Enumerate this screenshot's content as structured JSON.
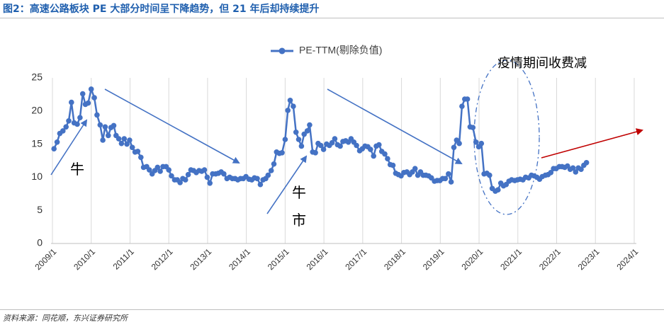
{
  "header": {
    "title": "图2：高速公路板块 PE 大部分时间呈下降趋势，但 21 年后却持续提升"
  },
  "source": "资料来源：同花顺，东兴证券研究所",
  "colors": {
    "title": "#1f5fae",
    "series": "#4472c4",
    "trend_arrow_blue": "#4472c4",
    "trend_arrow_red": "#c00000",
    "ellipse": "#4472c4",
    "grid": "#d9d9d9"
  },
  "chart_data": {
    "type": "line",
    "legend": {
      "position": "top-center",
      "entries": [
        "PE-TTM(剔除负值)"
      ]
    },
    "ylim": [
      0,
      25
    ],
    "yticks": [
      0,
      5,
      10,
      15,
      20,
      25
    ],
    "xlim": [
      2009.0,
      2024.1
    ],
    "xticks": [
      "2009/1",
      "2010/1",
      "2011/1",
      "2012/1",
      "2013/1",
      "2014/1",
      "2015/1",
      "2016/1",
      "2017/1",
      "2018/1",
      "2019/1",
      "2020/1",
      "2021/1",
      "2022/1",
      "2023/1",
      "2024/1"
    ],
    "grid": "vertical lines at x ticks",
    "series": [
      {
        "name": "PE-TTM(剔除负值)",
        "marker": "circle",
        "points": [
          [
            2009.04,
            14.3
          ],
          [
            2009.12,
            15.3
          ],
          [
            2009.19,
            16.6
          ],
          [
            2009.27,
            17.0
          ],
          [
            2009.35,
            17.6
          ],
          [
            2009.42,
            18.5
          ],
          [
            2009.49,
            21.3
          ],
          [
            2009.56,
            18.2
          ],
          [
            2009.64,
            18.0
          ],
          [
            2009.71,
            19.0
          ],
          [
            2009.78,
            22.6
          ],
          [
            2009.85,
            21.0
          ],
          [
            2009.92,
            21.2
          ],
          [
            2010.0,
            23.3
          ],
          [
            2010.08,
            22.0
          ],
          [
            2010.15,
            19.4
          ],
          [
            2010.23,
            17.9
          ],
          [
            2010.3,
            15.6
          ],
          [
            2010.36,
            17.6
          ],
          [
            2010.44,
            16.3
          ],
          [
            2010.51,
            17.5
          ],
          [
            2010.58,
            17.8
          ],
          [
            2010.64,
            16.3
          ],
          [
            2010.71,
            15.8
          ],
          [
            2010.78,
            15.1
          ],
          [
            2010.85,
            15.8
          ],
          [
            2010.92,
            15.0
          ],
          [
            2010.99,
            15.6
          ],
          [
            2011.06,
            14.5
          ],
          [
            2011.13,
            13.8
          ],
          [
            2011.2,
            13.9
          ],
          [
            2011.28,
            13.0
          ],
          [
            2011.35,
            11.5
          ],
          [
            2011.43,
            11.6
          ],
          [
            2011.5,
            11.1
          ],
          [
            2011.57,
            10.5
          ],
          [
            2011.64,
            11.0
          ],
          [
            2011.71,
            11.5
          ],
          [
            2011.78,
            10.9
          ],
          [
            2011.85,
            11.6
          ],
          [
            2011.93,
            11.6
          ],
          [
            2012.0,
            11.1
          ],
          [
            2012.07,
            10.2
          ],
          [
            2012.15,
            9.6
          ],
          [
            2012.22,
            9.6
          ],
          [
            2012.29,
            9.2
          ],
          [
            2012.36,
            9.8
          ],
          [
            2012.43,
            9.6
          ],
          [
            2012.5,
            10.4
          ],
          [
            2012.57,
            11.1
          ],
          [
            2012.64,
            11.0
          ],
          [
            2012.71,
            10.7
          ],
          [
            2012.78,
            11.0
          ],
          [
            2012.85,
            10.9
          ],
          [
            2012.92,
            11.1
          ],
          [
            2012.99,
            10.0
          ],
          [
            2013.06,
            9.1
          ],
          [
            2013.13,
            10.5
          ],
          [
            2013.21,
            10.5
          ],
          [
            2013.28,
            10.6
          ],
          [
            2013.35,
            10.8
          ],
          [
            2013.42,
            10.5
          ],
          [
            2013.5,
            9.8
          ],
          [
            2013.57,
            10.0
          ],
          [
            2013.64,
            9.8
          ],
          [
            2013.71,
            9.8
          ],
          [
            2013.78,
            9.6
          ],
          [
            2013.85,
            9.8
          ],
          [
            2013.92,
            9.8
          ],
          [
            2013.99,
            10.1
          ],
          [
            2014.07,
            9.7
          ],
          [
            2014.14,
            9.6
          ],
          [
            2014.21,
            9.9
          ],
          [
            2014.28,
            9.8
          ],
          [
            2014.36,
            8.9
          ],
          [
            2014.43,
            9.6
          ],
          [
            2014.5,
            9.8
          ],
          [
            2014.56,
            10.3
          ],
          [
            2014.64,
            11.0
          ],
          [
            2014.71,
            12.0
          ],
          [
            2014.78,
            13.8
          ],
          [
            2014.85,
            13.6
          ],
          [
            2014.92,
            13.7
          ],
          [
            2015.0,
            15.7
          ],
          [
            2015.07,
            20.1
          ],
          [
            2015.13,
            21.6
          ],
          [
            2015.21,
            20.7
          ],
          [
            2015.28,
            16.8
          ],
          [
            2015.35,
            15.7
          ],
          [
            2015.42,
            14.7
          ],
          [
            2015.49,
            16.5
          ],
          [
            2015.57,
            17.0
          ],
          [
            2015.63,
            17.9
          ],
          [
            2015.71,
            13.8
          ],
          [
            2015.78,
            13.7
          ],
          [
            2015.85,
            15.1
          ],
          [
            2015.92,
            14.8
          ],
          [
            2015.99,
            14.2
          ],
          [
            2016.07,
            15.0
          ],
          [
            2016.14,
            14.8
          ],
          [
            2016.21,
            15.2
          ],
          [
            2016.28,
            15.8
          ],
          [
            2016.35,
            14.9
          ],
          [
            2016.42,
            14.7
          ],
          [
            2016.49,
            15.4
          ],
          [
            2016.56,
            15.5
          ],
          [
            2016.63,
            15.3
          ],
          [
            2016.7,
            15.8
          ],
          [
            2016.77,
            15.3
          ],
          [
            2016.84,
            14.8
          ],
          [
            2016.92,
            14.0
          ],
          [
            2016.99,
            14.3
          ],
          [
            2017.06,
            14.7
          ],
          [
            2017.13,
            14.6
          ],
          [
            2017.2,
            14.2
          ],
          [
            2017.28,
            13.2
          ],
          [
            2017.35,
            14.7
          ],
          [
            2017.42,
            14.9
          ],
          [
            2017.49,
            13.9
          ],
          [
            2017.57,
            13.5
          ],
          [
            2017.64,
            12.8
          ],
          [
            2017.71,
            11.9
          ],
          [
            2017.78,
            11.8
          ],
          [
            2017.85,
            10.6
          ],
          [
            2017.92,
            10.4
          ],
          [
            2017.99,
            10.2
          ],
          [
            2018.06,
            10.7
          ],
          [
            2018.14,
            10.8
          ],
          [
            2018.21,
            10.4
          ],
          [
            2018.28,
            10.8
          ],
          [
            2018.35,
            11.3
          ],
          [
            2018.42,
            10.3
          ],
          [
            2018.49,
            10.8
          ],
          [
            2018.56,
            10.3
          ],
          [
            2018.63,
            10.3
          ],
          [
            2018.7,
            10.2
          ],
          [
            2018.77,
            9.9
          ],
          [
            2018.85,
            9.4
          ],
          [
            2018.92,
            9.5
          ],
          [
            2018.99,
            9.5
          ],
          [
            2019.06,
            9.8
          ],
          [
            2019.13,
            9.8
          ],
          [
            2019.21,
            10.5
          ],
          [
            2019.28,
            9.3
          ],
          [
            2019.35,
            14.5
          ],
          [
            2019.42,
            15.6
          ],
          [
            2019.49,
            15.1
          ],
          [
            2019.56,
            20.7
          ],
          [
            2019.63,
            21.8
          ],
          [
            2019.7,
            21.8
          ],
          [
            2019.77,
            17.6
          ],
          [
            2019.84,
            17.5
          ],
          [
            2019.92,
            15.3
          ],
          [
            2019.99,
            14.6
          ],
          [
            2020.06,
            15.1
          ],
          [
            2020.13,
            10.5
          ],
          [
            2020.2,
            10.6
          ],
          [
            2020.27,
            10.3
          ],
          [
            2020.34,
            8.3
          ],
          [
            2020.42,
            7.9
          ],
          [
            2020.49,
            8.1
          ],
          [
            2020.56,
            9.1
          ],
          [
            2020.63,
            8.7
          ],
          [
            2020.7,
            8.9
          ],
          [
            2020.77,
            9.4
          ],
          [
            2020.84,
            9.6
          ],
          [
            2020.92,
            9.5
          ],
          [
            2020.99,
            9.6
          ],
          [
            2021.06,
            9.7
          ],
          [
            2021.13,
            9.6
          ],
          [
            2021.2,
            10.0
          ],
          [
            2021.28,
            9.9
          ],
          [
            2021.35,
            10.3
          ],
          [
            2021.42,
            10.2
          ],
          [
            2021.49,
            10.0
          ],
          [
            2021.56,
            9.7
          ],
          [
            2021.63,
            10.1
          ],
          [
            2021.71,
            10.3
          ],
          [
            2021.78,
            10.4
          ],
          [
            2021.85,
            10.7
          ],
          [
            2021.92,
            11.3
          ],
          [
            2021.99,
            11.3
          ],
          [
            2022.07,
            11.6
          ],
          [
            2022.14,
            11.6
          ],
          [
            2022.21,
            11.5
          ],
          [
            2022.28,
            11.7
          ],
          [
            2022.35,
            11.2
          ],
          [
            2022.42,
            11.4
          ],
          [
            2022.49,
            10.8
          ],
          [
            2022.56,
            11.4
          ],
          [
            2022.63,
            11.2
          ],
          [
            2022.7,
            11.8
          ],
          [
            2022.77,
            12.2
          ]
        ]
      }
    ],
    "annotations": [
      {
        "text": "疫情期间收费减",
        "kind": "label"
      },
      {
        "text": "牛",
        "kind": "label"
      },
      {
        "text": "牛",
        "kind": "label"
      },
      {
        "text": "市",
        "kind": "label"
      }
    ]
  }
}
